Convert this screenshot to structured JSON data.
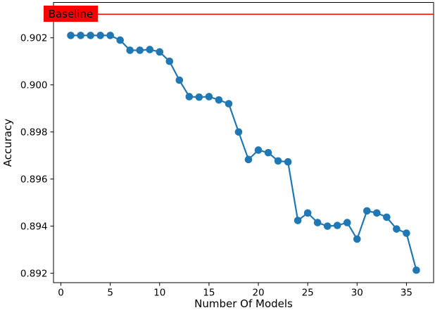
{
  "chart_data": {
    "type": "line",
    "title": "",
    "xlabel": "Number Of Models",
    "ylabel": "Accuracy",
    "x": [
      1,
      2,
      3,
      4,
      5,
      6,
      7,
      8,
      9,
      10,
      11,
      12,
      13,
      14,
      15,
      16,
      17,
      18,
      19,
      20,
      21,
      22,
      23,
      24,
      25,
      26,
      27,
      28,
      29,
      30,
      31,
      32,
      33,
      34,
      35,
      36
    ],
    "y": [
      0.9021,
      0.9021,
      0.9021,
      0.9021,
      0.9021,
      0.9019,
      0.90147,
      0.90147,
      0.9015,
      0.9014,
      0.901,
      0.9002,
      0.8995,
      0.89948,
      0.8995,
      0.89936,
      0.8992,
      0.898,
      0.89683,
      0.89723,
      0.89712,
      0.89677,
      0.89673,
      0.89424,
      0.89456,
      0.89415,
      0.894,
      0.89403,
      0.89415,
      0.89345,
      0.89465,
      0.89456,
      0.89438,
      0.89388,
      0.8937,
      0.89213
    ],
    "baseline": {
      "label": "Baseline",
      "value": 0.903
    },
    "xlim": [
      -0.75,
      37.75
    ],
    "ylim": [
      0.8916,
      0.9035
    ],
    "xticks": [
      0,
      5,
      10,
      15,
      20,
      25,
      30,
      35
    ],
    "yticks": [
      0.902,
      0.9,
      0.898,
      0.896,
      0.894,
      0.892
    ],
    "ytick_labels": [
      "0.902",
      "0.900",
      "0.898",
      "0.896",
      "0.894",
      "0.892"
    ],
    "grid": false,
    "legend": null,
    "marker": "o",
    "colors": {
      "line": "#1f77b4",
      "baseline": "#ff0000",
      "text": "#000000",
      "spine": "#000000",
      "background": "#ffffff"
    }
  }
}
